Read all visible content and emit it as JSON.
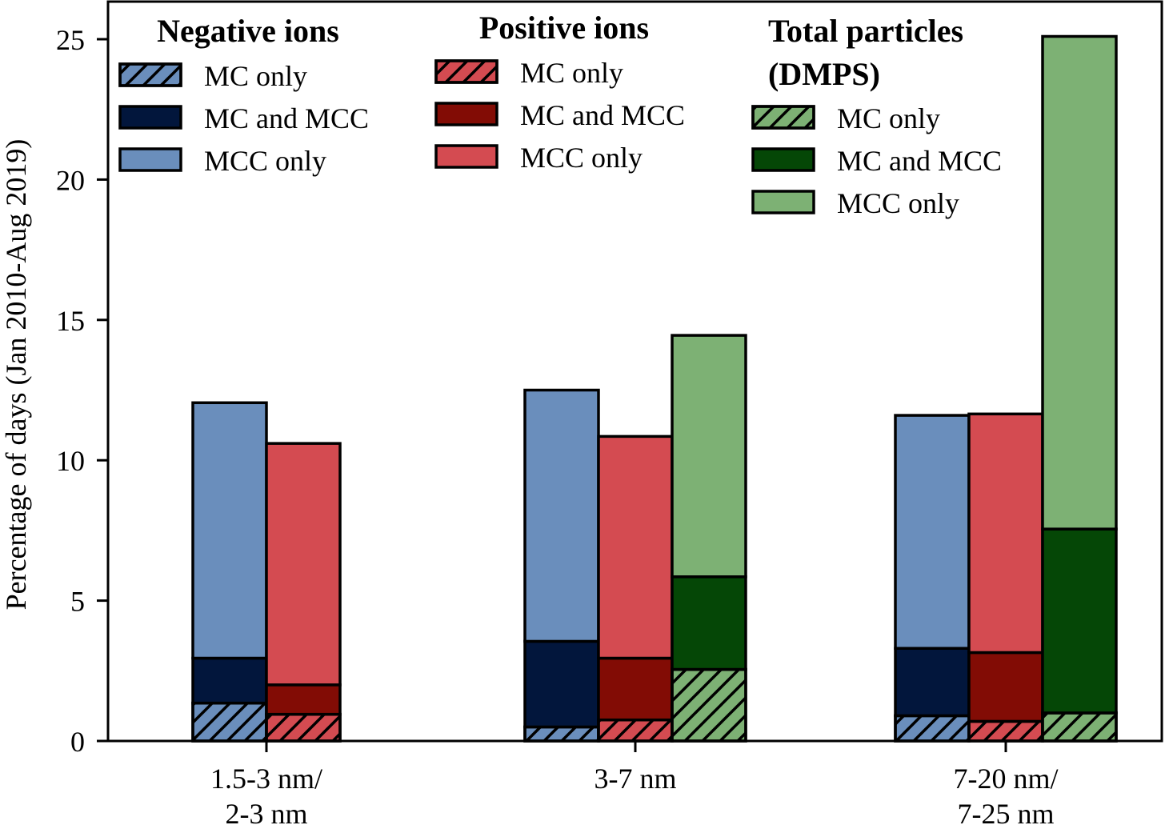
{
  "chart_data": {
    "type": "bar",
    "stacked": true,
    "grouped": true,
    "title": "",
    "xlabel": "",
    "ylabel": "Percentage of days (Jan 2010-Aug 2019)",
    "ylim": [
      0,
      26.3
    ],
    "yticks": [
      0,
      5,
      10,
      15,
      20,
      25
    ],
    "grid": false,
    "categories": [
      [
        "1.5-3 nm/",
        "2-3 nm"
      ],
      [
        "3-7 nm"
      ],
      [
        "7-20 nm/",
        "7-25 nm"
      ]
    ],
    "layer_names": [
      "MC only",
      "MC and MCC",
      "MCC only"
    ],
    "groups": [
      {
        "name": "Negative ions",
        "colors": {
          "MC only": "#6a8ebc",
          "MC and MCC": "#02163c",
          "MCC only": "#6a8ebc"
        },
        "hatched": {
          "MC only": true,
          "MC and MCC": false,
          "MCC only": false
        },
        "values": {
          "MC only": [
            1.35,
            0.5,
            0.9
          ],
          "MC and MCC": [
            1.6,
            3.05,
            2.4
          ],
          "MCC only": [
            9.1,
            8.95,
            8.3
          ]
        }
      },
      {
        "name": "Positive ions",
        "colors": {
          "MC only": "#d44b51",
          "MC and MCC": "#820c05",
          "MCC only": "#d44b51"
        },
        "hatched": {
          "MC only": true,
          "MC and MCC": false,
          "MCC only": false
        },
        "values": {
          "MC only": [
            0.95,
            0.75,
            0.7
          ],
          "MC and MCC": [
            1.05,
            2.2,
            2.45
          ],
          "MCC only": [
            8.6,
            7.9,
            8.5
          ]
        }
      },
      {
        "name": "Total particles (DMPS)",
        "colors": {
          "MC only": "#7db174",
          "MC and MCC": "#054706",
          "MCC only": "#7db174"
        },
        "hatched": {
          "MC only": true,
          "MC and MCC": false,
          "MCC only": false
        },
        "values": {
          "MC only": [
            null,
            2.55,
            1.0
          ],
          "MC and MCC": [
            null,
            3.3,
            6.55
          ],
          "MCC only": [
            null,
            8.6,
            17.55
          ]
        }
      }
    ],
    "legend": [
      {
        "title": [
          "Negative ions"
        ],
        "entries": [
          "MC only",
          "MC and MCC",
          "MCC only"
        ],
        "placement": "top-left"
      },
      {
        "title": [
          "Positive ions"
        ],
        "entries": [
          "MC only",
          "MC and MCC",
          "MCC only"
        ],
        "placement": "top-center"
      },
      {
        "title": [
          "Total particles",
          "(DMPS)"
        ],
        "entries": [
          "MC only",
          "MC and MCC",
          "MCC only"
        ],
        "placement": "top-right"
      }
    ]
  }
}
